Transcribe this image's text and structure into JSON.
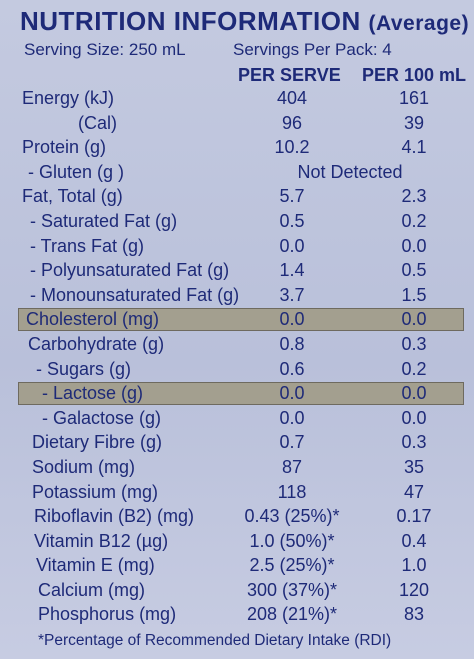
{
  "header": {
    "title_main": "NUTRITION INFORMATION",
    "title_sub": "(Average)",
    "serving_size": "Serving Size: 250 mL",
    "servings_per_pack": "Servings Per Pack: 4",
    "col_per_serve": "PER SERVE",
    "col_per_100": "PER 100 mL"
  },
  "rows": [
    {
      "label": "Energy (kJ)",
      "per_serve": "404",
      "per_100": "161"
    },
    {
      "label": "(Cal)",
      "per_serve": "96",
      "per_100": "39"
    },
    {
      "label": "Protein (g)",
      "per_serve": "10.2",
      "per_100": "4.1"
    },
    {
      "label": "- Gluten (g )",
      "span_value": "Not Detected"
    },
    {
      "label": "Fat, Total (g)",
      "per_serve": "5.7",
      "per_100": "2.3"
    },
    {
      "label": "- Saturated Fat (g)",
      "per_serve": "0.5",
      "per_100": "0.2"
    },
    {
      "label": "- Trans Fat (g)",
      "per_serve": "0.0",
      "per_100": "0.0"
    },
    {
      "label": "- Polyunsaturated Fat (g)",
      "per_serve": "1.4",
      "per_100": "0.5"
    },
    {
      "label": "- Monounsaturated Fat (g)",
      "per_serve": "3.7",
      "per_100": "1.5"
    },
    {
      "label": "Cholesterol (mg)",
      "per_serve": "0.0",
      "per_100": "0.0"
    },
    {
      "label": "Carbohydrate (g)",
      "per_serve": "0.8",
      "per_100": "0.3"
    },
    {
      "label": "- Sugars (g)",
      "per_serve": "0.6",
      "per_100": "0.2"
    },
    {
      "label": "- Lactose (g)",
      "per_serve": "0.0",
      "per_100": "0.0"
    },
    {
      "label": "- Galactose (g)",
      "per_serve": "0.0",
      "per_100": "0.0"
    },
    {
      "label": "Dietary Fibre (g)",
      "per_serve": "0.7",
      "per_100": "0.3"
    },
    {
      "label": "Sodium (mg)",
      "per_serve": "87",
      "per_100": "35"
    },
    {
      "label": "Potassium (mg)",
      "per_serve": "118",
      "per_100": "47"
    },
    {
      "label": "Riboflavin (B2) (mg)",
      "per_serve": "0.43 (25%)*",
      "per_100": "0.17"
    },
    {
      "label": "Vitamin B12 (µg)",
      "per_serve": "1.0 (50%)*",
      "per_100": "0.4"
    },
    {
      "label": "Vitamin E (mg)",
      "per_serve": "2.5 (25%)*",
      "per_100": "1.0"
    },
    {
      "label": "Calcium (mg)",
      "per_serve": "300 (37%)*",
      "per_100": "120"
    },
    {
      "label": "Phosphorus (mg)",
      "per_serve": "208 (21%)*",
      "per_100": "83"
    }
  ],
  "footnote": "*Percentage of Recommended Dietary Intake (RDI)",
  "colors": {
    "ink": "#1e2a78",
    "background": "#bcc3dc",
    "highlight": "#a39f8f"
  }
}
